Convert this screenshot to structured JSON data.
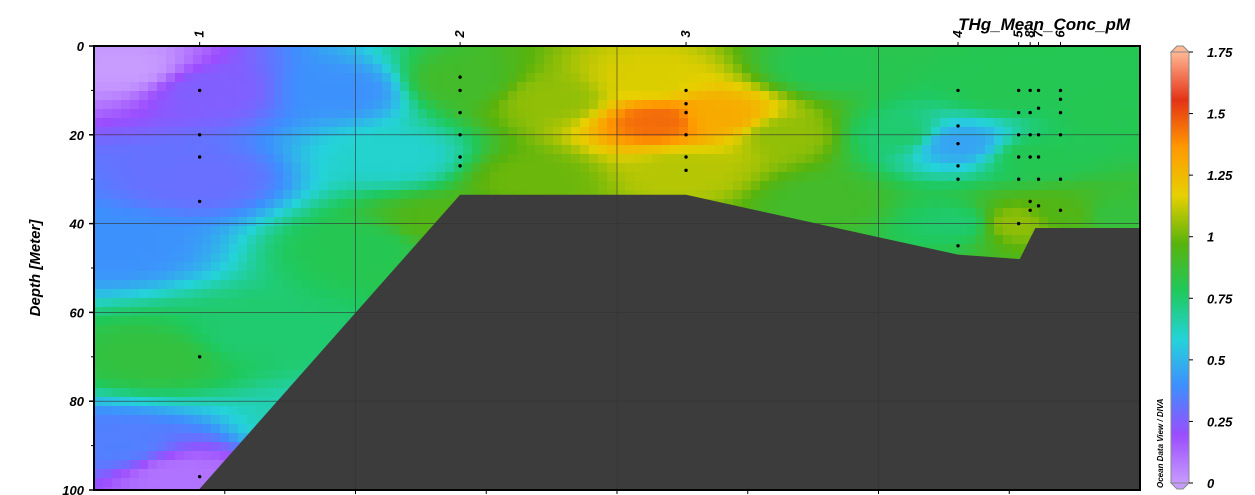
{
  "chart_data": {
    "type": "heatmap",
    "title": "THg_Mean_Conc_pM",
    "ylabel": "Depth [Meter]",
    "credit": "Ocean Data View / DIVA",
    "xlim": [
      0,
      1000
    ],
    "ylim": [
      0,
      100
    ],
    "y_inverted": true,
    "y_ticks": [
      0,
      20,
      40,
      60,
      80,
      100
    ],
    "y_tick_labels": [
      "0",
      "20",
      "40",
      "60",
      "80",
      "100"
    ],
    "x_grid": [
      250,
      500,
      750
    ],
    "grid": true,
    "colorbar": {
      "ticks": [
        0,
        0.25,
        0.5,
        0.75,
        1,
        1.25,
        1.5,
        1.75
      ],
      "tick_labels": [
        "0",
        "0.25",
        "0.5",
        "0.75",
        "1",
        "1.25",
        "1.5",
        "1.75"
      ],
      "range": [
        0,
        1.75
      ],
      "colors": [
        "#c79bff",
        "#9b4dff",
        "#3f8dff",
        "#24d3d9",
        "#1fc95c",
        "#58b30d",
        "#e6d000",
        "#ff9a00",
        "#e43316",
        "#ffb894"
      ]
    },
    "stations": [
      {
        "label": "1",
        "x": 101,
        "depths": [
          10,
          20,
          25,
          35,
          70,
          97
        ]
      },
      {
        "label": "2",
        "x": 350,
        "depths": [
          7,
          10,
          15,
          20,
          25,
          27
        ]
      },
      {
        "label": "3",
        "x": 566,
        "depths": [
          10,
          13,
          15,
          20,
          25,
          28
        ]
      },
      {
        "label": "4",
        "x": 826,
        "depths": [
          10,
          18,
          22,
          27,
          30,
          45
        ]
      },
      {
        "label": "5",
        "x": 884,
        "depths": [
          10,
          15,
          20,
          25,
          30,
          40
        ]
      },
      {
        "label": "8",
        "x": 895,
        "depths": [
          10,
          15,
          20,
          25,
          35,
          37
        ]
      },
      {
        "label": "7",
        "x": 903,
        "depths": [
          10,
          14,
          20,
          25,
          30,
          36
        ]
      },
      {
        "label": "6",
        "x": 924,
        "depths": [
          10,
          12,
          15,
          20,
          30,
          37
        ]
      }
    ],
    "field_points": [
      {
        "x": 30,
        "y": 5,
        "v": 0.0
      },
      {
        "x": 110,
        "y": 10,
        "v": 0.25
      },
      {
        "x": 240,
        "y": 10,
        "v": 0.4
      },
      {
        "x": 101,
        "y": 30,
        "v": 0.3
      },
      {
        "x": 20,
        "y": 45,
        "v": 0.4
      },
      {
        "x": 60,
        "y": 70,
        "v": 0.85
      },
      {
        "x": 150,
        "y": 65,
        "v": 0.75
      },
      {
        "x": 20,
        "y": 90,
        "v": 0.35
      },
      {
        "x": 80,
        "y": 97,
        "v": 0.1
      },
      {
        "x": 220,
        "y": 85,
        "v": 0.65
      },
      {
        "x": 260,
        "y": 45,
        "v": 0.8
      },
      {
        "x": 290,
        "y": 25,
        "v": 0.6
      },
      {
        "x": 330,
        "y": 40,
        "v": 0.95
      },
      {
        "x": 350,
        "y": 8,
        "v": 0.9
      },
      {
        "x": 440,
        "y": 12,
        "v": 1.05
      },
      {
        "x": 420,
        "y": 30,
        "v": 1.0
      },
      {
        "x": 540,
        "y": 17,
        "v": 1.45
      },
      {
        "x": 600,
        "y": 16,
        "v": 1.3
      },
      {
        "x": 530,
        "y": 8,
        "v": 1.15
      },
      {
        "x": 566,
        "y": 28,
        "v": 1.1
      },
      {
        "x": 660,
        "y": 20,
        "v": 1.05
      },
      {
        "x": 700,
        "y": 5,
        "v": 0.8
      },
      {
        "x": 700,
        "y": 35,
        "v": 0.9
      },
      {
        "x": 770,
        "y": 20,
        "v": 0.75
      },
      {
        "x": 826,
        "y": 22,
        "v": 0.45
      },
      {
        "x": 826,
        "y": 40,
        "v": 0.75
      },
      {
        "x": 870,
        "y": 10,
        "v": 0.8
      },
      {
        "x": 900,
        "y": 25,
        "v": 0.8
      },
      {
        "x": 880,
        "y": 40,
        "v": 1.05
      },
      {
        "x": 930,
        "y": 38,
        "v": 0.95
      },
      {
        "x": 975,
        "y": 15,
        "v": 0.8
      },
      {
        "x": 975,
        "y": 38,
        "v": 0.85
      }
    ],
    "bathymetry": [
      [
        100,
        100
      ],
      [
        350,
        33.5
      ],
      [
        566,
        33.5
      ],
      [
        826,
        47
      ],
      [
        885,
        48
      ],
      [
        900,
        41
      ],
      [
        1000,
        41
      ]
    ]
  }
}
